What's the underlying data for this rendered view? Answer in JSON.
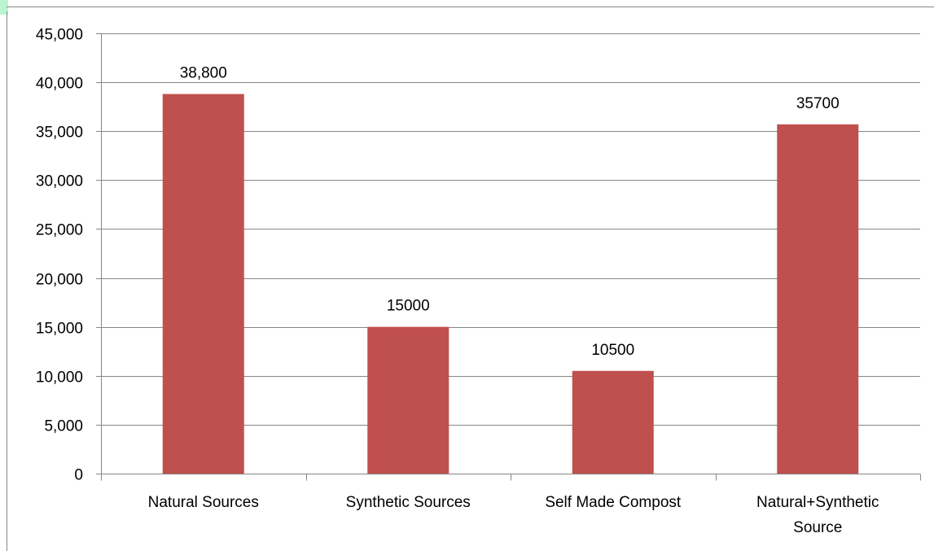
{
  "chart_data": {
    "type": "bar",
    "title": "",
    "xlabel": "",
    "ylabel": "",
    "categories": [
      [
        "Natural Sources"
      ],
      [
        "Synthetic Sources"
      ],
      [
        "Self Made Compost"
      ],
      [
        "Natural+Synthetic",
        "Source"
      ]
    ],
    "values": [
      38800,
      15000,
      10500,
      35700
    ],
    "data_labels": [
      "38,800",
      "15000",
      "10500",
      "35700"
    ],
    "ylim": [
      0,
      45000
    ],
    "yticks": [
      0,
      5000,
      10000,
      15000,
      20000,
      25000,
      30000,
      35000,
      40000,
      45000
    ],
    "ytick_labels": [
      "0",
      "5,000",
      "10,000",
      "15,000",
      "20,000",
      "25,000",
      "30,000",
      "35,000",
      "40,000",
      "45,000"
    ],
    "grid": true,
    "legend": "none",
    "colors": {
      "bar": "#c0504d",
      "gridline": "#868686",
      "axis": "#868686",
      "accent_edge": "#b9f5cf"
    }
  }
}
